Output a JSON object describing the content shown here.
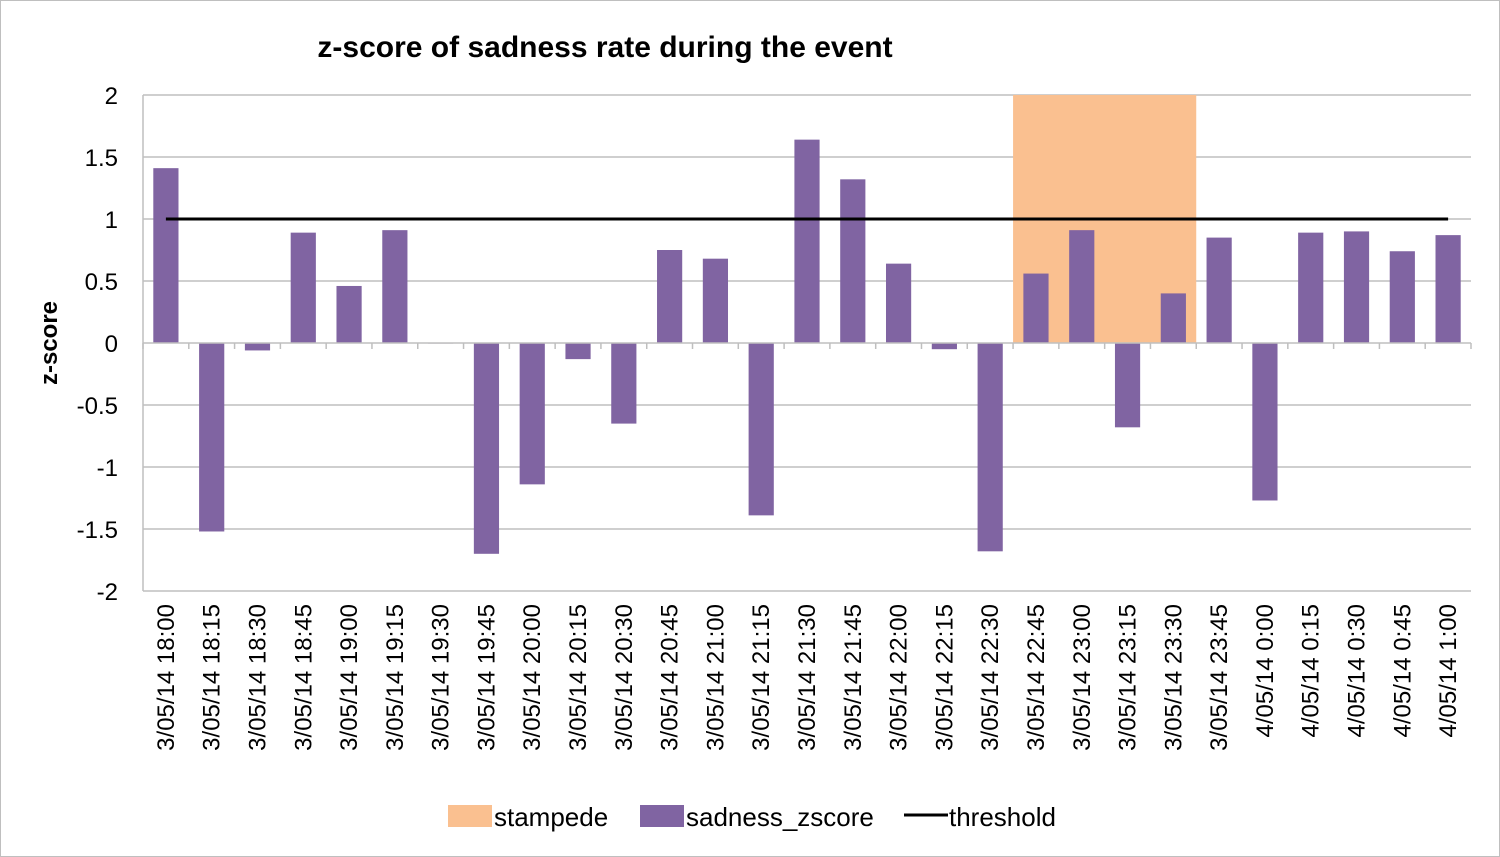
{
  "chart_data": {
    "type": "bar",
    "title": "z-score of sadness rate during the event",
    "xlabel": "",
    "ylabel": "z-score",
    "ylim": [
      -2,
      2
    ],
    "yticks": [
      2,
      1.5,
      1,
      0.5,
      0,
      -0.5,
      -1,
      -1.5,
      -2
    ],
    "grid": true,
    "legend_position": "bottom",
    "categories": [
      "3/05/14 18:00",
      "3/05/14 18:15",
      "3/05/14 18:30",
      "3/05/14 18:45",
      "3/05/14 19:00",
      "3/05/14 19:15",
      "3/05/14 19:30",
      "3/05/14 19:45",
      "3/05/14 20:00",
      "3/05/14 20:15",
      "3/05/14 20:30",
      "3/05/14 20:45",
      "3/05/14 21:00",
      "3/05/14 21:15",
      "3/05/14 21:30",
      "3/05/14 21:45",
      "3/05/14 22:00",
      "3/05/14 22:15",
      "3/05/14 22:30",
      "3/05/14 22:45",
      "3/05/14 23:00",
      "3/05/14 23:15",
      "3/05/14 23:30",
      "3/05/14 23:45",
      "4/05/14 0:00",
      "4/05/14 0:15",
      "4/05/14 0:30",
      "4/05/14 0:45",
      "4/05/14 1:00"
    ],
    "series": [
      {
        "name": "sadness_zscore",
        "type": "bar",
        "color": "#8064a2",
        "values": [
          1.41,
          -1.52,
          -0.06,
          0.89,
          0.46,
          0.91,
          0.0,
          -1.7,
          -1.14,
          -0.13,
          -0.65,
          0.75,
          0.68,
          -1.39,
          1.64,
          1.32,
          0.64,
          -0.05,
          -1.68,
          0.56,
          0.91,
          -0.68,
          0.4,
          0.85,
          -1.27,
          0.89,
          0.9,
          0.74,
          0.87
        ]
      },
      {
        "name": "threshold",
        "type": "line",
        "color": "#000000",
        "values": [
          1,
          1,
          1,
          1,
          1,
          1,
          1,
          1,
          1,
          1,
          1,
          1,
          1,
          1,
          1,
          1,
          1,
          1,
          1,
          1,
          1,
          1,
          1,
          1,
          1,
          1,
          1,
          1,
          1
        ]
      },
      {
        "name": "stampede",
        "type": "span",
        "color": "#fac090",
        "from": "3/05/14 22:45",
        "to": "3/05/14 23:30",
        "ymin": 0,
        "ymax": 2
      }
    ],
    "legend": [
      "stampede",
      "sadness_zscore",
      "threshold"
    ]
  }
}
